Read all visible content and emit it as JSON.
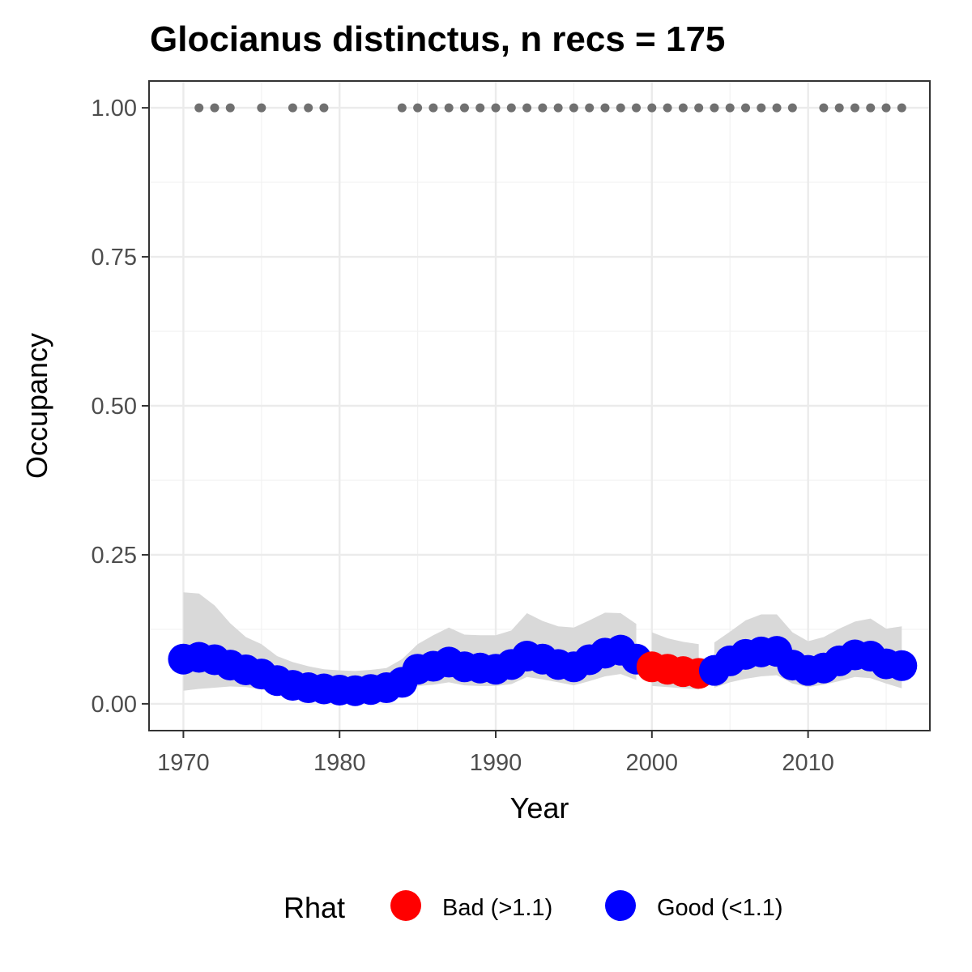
{
  "chart_data": {
    "type": "line",
    "title": "Glocianus distinctus, n recs = 175",
    "xlabel": "Year",
    "ylabel": "Occupancy",
    "xlim": [
      1967.8,
      2017.8
    ],
    "ylim": [
      -0.045,
      1.045
    ],
    "x_ticks": [
      1970,
      1980,
      1990,
      2000,
      2010
    ],
    "x_tick_labels": [
      "1970",
      "1980",
      "1990",
      "2000",
      "2010"
    ],
    "y_ticks": [
      0,
      0.25,
      0.5,
      0.75,
      1.0
    ],
    "y_tick_labels": [
      "0.00",
      "0.25",
      "0.50",
      "0.75",
      "1.00"
    ],
    "grid": true,
    "colors": {
      "bad": "#ff0000",
      "good": "#0000ff",
      "ribbon": "#d9d9d9",
      "records": "#707070"
    },
    "legend": {
      "position": "bottom",
      "title": "Rhat",
      "entries": [
        {
          "label": "Bad (>1.1)",
          "color": "#ff0000"
        },
        {
          "label": "Good (<1.1)",
          "color": "#0000ff"
        }
      ]
    },
    "series": [
      {
        "name": "Occupancy",
        "x": [
          1970,
          1971,
          1972,
          1973,
          1974,
          1975,
          1976,
          1977,
          1978,
          1979,
          1980,
          1981,
          1982,
          1983,
          1984,
          1985,
          1986,
          1987,
          1988,
          1989,
          1990,
          1991,
          1992,
          1993,
          1994,
          1995,
          1996,
          1997,
          1998,
          1999,
          2000,
          2001,
          2002,
          2003,
          2004,
          2005,
          2006,
          2007,
          2008,
          2009,
          2010,
          2011,
          2012,
          2013,
          2014,
          2015,
          2016
        ],
        "y": [
          0.075,
          0.078,
          0.074,
          0.065,
          0.057,
          0.05,
          0.039,
          0.031,
          0.027,
          0.025,
          0.023,
          0.022,
          0.024,
          0.027,
          0.036,
          0.058,
          0.063,
          0.07,
          0.062,
          0.06,
          0.058,
          0.066,
          0.08,
          0.075,
          0.066,
          0.062,
          0.074,
          0.085,
          0.09,
          0.075,
          0.062,
          0.058,
          0.054,
          0.051,
          0.056,
          0.072,
          0.083,
          0.087,
          0.088,
          0.065,
          0.056,
          0.06,
          0.072,
          0.082,
          0.08,
          0.067,
          0.064
        ],
        "lower": [
          0.022,
          0.025,
          0.027,
          0.029,
          0.028,
          0.024,
          0.018,
          0.014,
          0.012,
          0.011,
          0.01,
          0.01,
          0.011,
          0.013,
          0.017,
          0.03,
          0.032,
          0.036,
          0.031,
          0.03,
          0.03,
          0.033,
          0.045,
          0.041,
          0.036,
          0.031,
          0.038,
          0.046,
          0.05,
          0.04,
          0.03,
          0.028,
          0.026,
          0.024,
          0.027,
          0.036,
          0.042,
          0.046,
          0.048,
          0.034,
          0.028,
          0.032,
          0.038,
          0.045,
          0.043,
          0.034,
          0.026
        ],
        "upper": [
          0.187,
          0.185,
          0.165,
          0.135,
          0.112,
          0.1,
          0.08,
          0.07,
          0.063,
          0.058,
          0.056,
          0.055,
          0.057,
          0.06,
          0.075,
          0.1,
          0.115,
          0.128,
          0.116,
          0.115,
          0.115,
          0.123,
          0.152,
          0.139,
          0.13,
          0.128,
          0.14,
          0.153,
          0.152,
          0.134,
          0.12,
          0.11,
          0.104,
          0.1,
          0.103,
          0.121,
          0.14,
          0.15,
          0.15,
          0.12,
          0.105,
          0.112,
          0.126,
          0.138,
          0.143,
          0.126,
          0.13
        ],
        "rhat": [
          "good",
          "good",
          "good",
          "good",
          "good",
          "good",
          "good",
          "good",
          "good",
          "good",
          "good",
          "good",
          "good",
          "good",
          "good",
          "good",
          "good",
          "good",
          "good",
          "good",
          "good",
          "good",
          "good",
          "good",
          "good",
          "good",
          "good",
          "good",
          "good",
          "good",
          "bad",
          "bad",
          "bad",
          "bad",
          "good",
          "good",
          "good",
          "good",
          "good",
          "good",
          "good",
          "good",
          "good",
          "good",
          "good",
          "good",
          "good"
        ]
      },
      {
        "name": "Records",
        "x": [
          1971,
          1972,
          1973,
          1975,
          1977,
          1978,
          1979,
          1984,
          1985,
          1986,
          1987,
          1988,
          1989,
          1990,
          1991,
          1992,
          1993,
          1994,
          1995,
          1996,
          1997,
          1998,
          1999,
          2000,
          2001,
          2002,
          2003,
          2004,
          2005,
          2006,
          2007,
          2008,
          2009,
          2011,
          2012,
          2013,
          2014,
          2015,
          2016
        ],
        "y": [
          1,
          1,
          1,
          1,
          1,
          1,
          1,
          1,
          1,
          1,
          1,
          1,
          1,
          1,
          1,
          1,
          1,
          1,
          1,
          1,
          1,
          1,
          1,
          1,
          1,
          1,
          1,
          1,
          1,
          1,
          1,
          1,
          1,
          1,
          1,
          1,
          1,
          1,
          1
        ]
      }
    ]
  }
}
